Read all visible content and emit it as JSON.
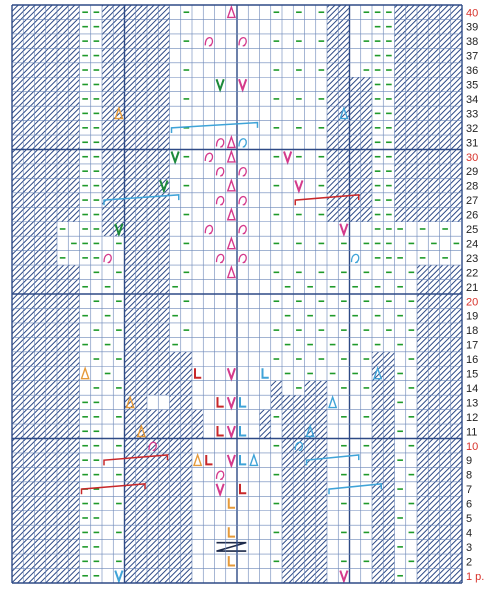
{
  "chart": {
    "columns": 40,
    "rows": 40,
    "grid_color": "#6a86b8",
    "grid_major_color": "#2e4a86",
    "hatch_color": "#2e4a86",
    "purl_color": "#1f9a2a",
    "highlight_row_color": "#d8322a",
    "normal_row_color": "#222222",
    "row_labels": [
      {
        "row": 40,
        "label": "40",
        "highlight": true
      },
      {
        "row": 39,
        "label": "39"
      },
      {
        "row": 38,
        "label": "38"
      },
      {
        "row": 37,
        "label": "37"
      },
      {
        "row": 36,
        "label": "36"
      },
      {
        "row": 35,
        "label": "35"
      },
      {
        "row": 34,
        "label": "34"
      },
      {
        "row": 33,
        "label": "33"
      },
      {
        "row": 32,
        "label": "32"
      },
      {
        "row": 31,
        "label": "31"
      },
      {
        "row": 30,
        "label": "30",
        "highlight": true
      },
      {
        "row": 29,
        "label": "29"
      },
      {
        "row": 28,
        "label": "28"
      },
      {
        "row": 27,
        "label": "27"
      },
      {
        "row": 26,
        "label": "26"
      },
      {
        "row": 25,
        "label": "25"
      },
      {
        "row": 24,
        "label": "24"
      },
      {
        "row": 23,
        "label": "23"
      },
      {
        "row": 22,
        "label": "22"
      },
      {
        "row": 21,
        "label": "21"
      },
      {
        "row": 20,
        "label": "20",
        "highlight": true
      },
      {
        "row": 19,
        "label": "19"
      },
      {
        "row": 18,
        "label": "18"
      },
      {
        "row": 17,
        "label": "17"
      },
      {
        "row": 16,
        "label": "16"
      },
      {
        "row": 15,
        "label": "15"
      },
      {
        "row": 14,
        "label": "14"
      },
      {
        "row": 13,
        "label": "13"
      },
      {
        "row": 12,
        "label": "12"
      },
      {
        "row": 11,
        "label": "11"
      },
      {
        "row": 10,
        "label": "10",
        "highlight": true
      },
      {
        "row": 9,
        "label": "9"
      },
      {
        "row": 8,
        "label": "8"
      },
      {
        "row": 7,
        "label": "7"
      },
      {
        "row": 6,
        "label": "6"
      },
      {
        "row": 5,
        "label": "5"
      },
      {
        "row": 4,
        "label": "4"
      },
      {
        "row": 3,
        "label": "3"
      },
      {
        "row": 2,
        "label": "2"
      },
      {
        "row": 1,
        "label": "1 р.",
        "highlight": true
      }
    ],
    "symbols": [
      {
        "row": 40,
        "col": 20,
        "sym": "triangle-pink"
      },
      {
        "row": 38,
        "col": 18,
        "sym": "twist-pink"
      },
      {
        "row": 38,
        "col": 21,
        "sym": "twist-pink"
      },
      {
        "row": 35,
        "col": 19,
        "sym": "v-green"
      },
      {
        "row": 35,
        "col": 21,
        "sym": "v-pink"
      },
      {
        "row": 33,
        "col": 10,
        "sym": "triangle-orange"
      },
      {
        "row": 33,
        "col": 30,
        "sym": "triangle-blue"
      },
      {
        "row": 31,
        "col": 19,
        "sym": "twist-pink"
      },
      {
        "row": 31,
        "col": 20,
        "sym": "triangle-pink"
      },
      {
        "row": 31,
        "col": 21,
        "sym": "twist-blue"
      },
      {
        "row": 30,
        "col": 15,
        "sym": "v-green"
      },
      {
        "row": 30,
        "col": 18,
        "sym": "twist-pink"
      },
      {
        "row": 30,
        "col": 20,
        "sym": "triangle-pink"
      },
      {
        "row": 30,
        "col": 25,
        "sym": "v-pink"
      },
      {
        "row": 29,
        "col": 19,
        "sym": "twist-pink"
      },
      {
        "row": 29,
        "col": 21,
        "sym": "twist-pink"
      },
      {
        "row": 28,
        "col": 14,
        "sym": "v-green"
      },
      {
        "row": 28,
        "col": 20,
        "sym": "triangle-pink"
      },
      {
        "row": 28,
        "col": 26,
        "sym": "v-pink"
      },
      {
        "row": 27,
        "col": 19,
        "sym": "twist-pink"
      },
      {
        "row": 27,
        "col": 21,
        "sym": "twist-pink"
      },
      {
        "row": 26,
        "col": 20,
        "sym": "triangle-pink"
      },
      {
        "row": 25,
        "col": 10,
        "sym": "v-green"
      },
      {
        "row": 25,
        "col": 18,
        "sym": "twist-pink"
      },
      {
        "row": 25,
        "col": 21,
        "sym": "twist-pink"
      },
      {
        "row": 25,
        "col": 30,
        "sym": "v-pink"
      },
      {
        "row": 24,
        "col": 20,
        "sym": "triangle-pink"
      },
      {
        "row": 23,
        "col": 9,
        "sym": "twist-pink"
      },
      {
        "row": 23,
        "col": 19,
        "sym": "twist-pink"
      },
      {
        "row": 23,
        "col": 21,
        "sym": "twist-pink"
      },
      {
        "row": 23,
        "col": 31,
        "sym": "twist-blue"
      },
      {
        "row": 22,
        "col": 20,
        "sym": "triangle-pink"
      },
      {
        "row": 15,
        "col": 7,
        "sym": "triangle-orange"
      },
      {
        "row": 15,
        "col": 17,
        "sym": "l-red"
      },
      {
        "row": 15,
        "col": 20,
        "sym": "v-pink"
      },
      {
        "row": 15,
        "col": 23,
        "sym": "l-blue"
      },
      {
        "row": 15,
        "col": 33,
        "sym": "triangle-blue"
      },
      {
        "row": 13,
        "col": 11,
        "sym": "triangle-orange"
      },
      {
        "row": 13,
        "col": 19,
        "sym": "l-red"
      },
      {
        "row": 13,
        "col": 20,
        "sym": "v-pink"
      },
      {
        "row": 13,
        "col": 21,
        "sym": "l-blue"
      },
      {
        "row": 13,
        "col": 29,
        "sym": "triangle-blue"
      },
      {
        "row": 11,
        "col": 12,
        "sym": "triangle-orange"
      },
      {
        "row": 11,
        "col": 19,
        "sym": "l-red"
      },
      {
        "row": 11,
        "col": 20,
        "sym": "v-pink"
      },
      {
        "row": 11,
        "col": 21,
        "sym": "l-blue"
      },
      {
        "row": 11,
        "col": 27,
        "sym": "triangle-blue"
      },
      {
        "row": 10,
        "col": 13,
        "sym": "twist-pink"
      },
      {
        "row": 10,
        "col": 26,
        "sym": "twist-blue"
      },
      {
        "row": 9,
        "col": 17,
        "sym": "triangle-orange"
      },
      {
        "row": 9,
        "col": 18,
        "sym": "l-red"
      },
      {
        "row": 9,
        "col": 20,
        "sym": "v-pink"
      },
      {
        "row": 9,
        "col": 21,
        "sym": "l-blue"
      },
      {
        "row": 9,
        "col": 22,
        "sym": "triangle-blue"
      },
      {
        "row": 8,
        "col": 19,
        "sym": "twist-pink"
      },
      {
        "row": 7,
        "col": 19,
        "sym": "v-pink"
      },
      {
        "row": 7,
        "col": 21,
        "sym": "l-red"
      },
      {
        "row": 6,
        "col": 20,
        "sym": "l-orange"
      },
      {
        "row": 4,
        "col": 20,
        "sym": "l-orange"
      },
      {
        "row": 3,
        "col": 20,
        "sym": "cable-dark"
      },
      {
        "row": 2,
        "col": 20,
        "sym": "l-orange"
      },
      {
        "row": 1,
        "col": 10,
        "sym": "v-blue"
      },
      {
        "row": 1,
        "col": 30,
        "sym": "v-pink"
      }
    ]
  }
}
